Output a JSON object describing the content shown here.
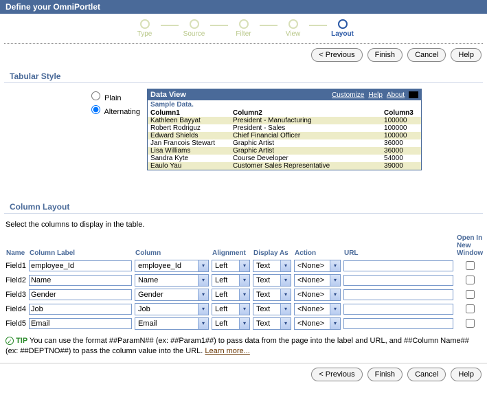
{
  "title": "Define your OmniPortlet",
  "wizard": {
    "steps": [
      "Type",
      "Source",
      "Filter",
      "View",
      "Layout"
    ],
    "active_index": 4
  },
  "buttons": {
    "previous": "< Previous",
    "finish": "Finish",
    "cancel": "Cancel",
    "help": "Help"
  },
  "tabular": {
    "title": "Tabular Style",
    "plain": "Plain",
    "alternating": "Alternating",
    "selected": "alternating"
  },
  "dataview": {
    "title": "Data View",
    "links": {
      "customize": "Customize",
      "help": "Help",
      "about": "About"
    },
    "sample_label": "Sample Data.",
    "headers": [
      "Column1",
      "Column2",
      "Column3"
    ],
    "rows": [
      [
        "Kathleen Bayyat",
        "President - Manufacturing",
        "100000"
      ],
      [
        "Robert Rodriguz",
        "President - Sales",
        "100000"
      ],
      [
        "Edward Shields",
        "Chief Financial Officer",
        "100000"
      ],
      [
        "Jan Francois Stewart",
        "Graphic Artist",
        "36000"
      ],
      [
        "Lisa Williams",
        "Graphic Artist",
        "36000"
      ],
      [
        "Sandra Kyte",
        "Course Developer",
        "54000"
      ],
      [
        "Eaulo Yau",
        "Customer Sales Representative",
        "39000"
      ]
    ]
  },
  "column_layout": {
    "title": "Column Layout",
    "subtext": "Select the columns to display in the table.",
    "headers": {
      "name": "Name",
      "column_label": "Column Label",
      "column": "Column",
      "alignment": "Alignment",
      "display_as": "Display As",
      "action": "Action",
      "url": "URL",
      "open_in": "Open In New Window"
    },
    "rows": [
      {
        "name": "Field1",
        "label": "employee_Id",
        "column": "employee_Id",
        "align": "Left",
        "display": "Text",
        "action": "<None>",
        "url": "",
        "open": false
      },
      {
        "name": "Field2",
        "label": "Name",
        "column": "Name",
        "align": "Left",
        "display": "Text",
        "action": "<None>",
        "url": "",
        "open": false
      },
      {
        "name": "Field3",
        "label": "Gender",
        "column": "Gender",
        "align": "Left",
        "display": "Text",
        "action": "<None>",
        "url": "",
        "open": false
      },
      {
        "name": "Field4",
        "label": "Job",
        "column": "Job",
        "align": "Left",
        "display": "Text",
        "action": "<None>",
        "url": "",
        "open": false
      },
      {
        "name": "Field5",
        "label": "Email",
        "column": "Email",
        "align": "Left",
        "display": "Text",
        "action": "<None>",
        "url": "",
        "open": false
      }
    ]
  },
  "tip": {
    "label": "TIP",
    "text": "You can use the format ##ParamN## (ex: ##Param1##) to pass data from the page into the label and URL, and ##Column Name## (ex: ##DEPTNO##) to pass the column value into the URL. ",
    "link": "Learn more..."
  },
  "colors": {
    "header_bg": "#4a6a99",
    "alt_row": "#edecc8",
    "accent": "#2a58a5"
  }
}
